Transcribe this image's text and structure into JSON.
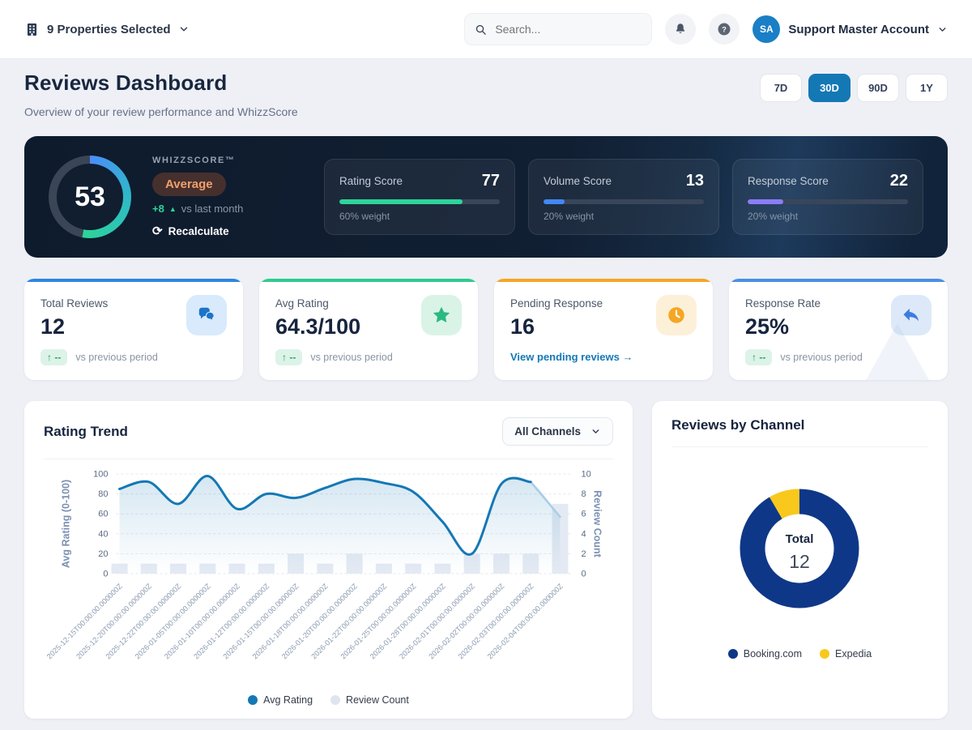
{
  "header": {
    "property_selector": "9 Properties Selected",
    "search_placeholder": "Search...",
    "avatar_initials": "SA",
    "account_name": "Support Master Account"
  },
  "page": {
    "title": "Reviews Dashboard",
    "subtitle": "Overview of your review performance and WhizzScore",
    "time_ranges": [
      {
        "label": "7D",
        "active": false
      },
      {
        "label": "30D",
        "active": true
      },
      {
        "label": "90D",
        "active": false
      },
      {
        "label": "1Y",
        "active": false
      }
    ],
    "accent_color": "#1478b5"
  },
  "whizzscore": {
    "score": 53,
    "label": "WHIZZSCORE™",
    "tier": "Average",
    "delta_value": "+8",
    "delta_arrow": "▲",
    "delta_text": "vs last month",
    "recalculate_icon": "⟳",
    "recalculate_label": "Recalculate",
    "gauge_colors": {
      "start": "#4b8ef8",
      "mid": "#2fb7c9",
      "end": "#2dd498",
      "track": "#3a4556"
    },
    "components": [
      {
        "name": "Rating Score",
        "value": 77,
        "weight": "60% weight",
        "color": "#2dd49a"
      },
      {
        "name": "Volume Score",
        "value": 13,
        "weight": "20% weight",
        "color": "#4287f5"
      },
      {
        "name": "Response Score",
        "value": 22,
        "weight": "20% weight",
        "color": "#8b7cf8"
      }
    ]
  },
  "stats": [
    {
      "label": "Total Reviews",
      "value": "12",
      "icon": "chat-bubbles-icon",
      "accent": "#2e86de",
      "badge": "↑ --",
      "suffix": "vs previous period"
    },
    {
      "label": "Avg Rating",
      "value": "64.3/100",
      "icon": "star-icon",
      "accent": "#2ecc8f",
      "badge": "↑ --",
      "suffix": "vs previous period"
    },
    {
      "label": "Pending Response",
      "value": "16",
      "icon": "clock-icon",
      "accent": "#f5a623",
      "link": "View pending reviews →"
    },
    {
      "label": "Response Rate",
      "value": "25%",
      "icon": "reply-icon",
      "accent": "#4a90e2",
      "badge": "↑ --",
      "suffix": "vs previous period"
    }
  ],
  "rating_trend": {
    "title": "Rating Trend",
    "channel_filter": "All Channels"
  },
  "reviews_by_channel": {
    "title": "Reviews by Channel"
  },
  "chart_data": [
    {
      "type": "line",
      "title": "Rating Trend",
      "x": [
        "2025-12-15T00:00:00.000000Z",
        "2025-12-20T00:00:00.000000Z",
        "2025-12-22T00:00:00.000000Z",
        "2026-01-05T00:00:00.000000Z",
        "2026-01-10T00:00:00.000000Z",
        "2026-01-12T00:00:00.000000Z",
        "2026-01-15T00:00:00.000000Z",
        "2026-01-18T00:00:00.000000Z",
        "2026-01-20T00:00:00.000000Z",
        "2026-01-22T00:00:00.000000Z",
        "2026-01-25T00:00:00.000000Z",
        "2026-01-28T00:00:00.000000Z",
        "2026-02-01T00:00:00.000000Z",
        "2026-02-02T00:00:00.000000Z",
        "2026-02-03T00:00:00.000000Z",
        "2026-02-04T00:00:00.000000Z"
      ],
      "series": [
        {
          "name": "Avg Rating",
          "type": "line",
          "axis": "left",
          "color": "#1478b5",
          "values": [
            85,
            92,
            70,
            98,
            65,
            80,
            76,
            86,
            95,
            91,
            82,
            52,
            20,
            90,
            92,
            57
          ]
        },
        {
          "name": "Review Count",
          "type": "bar",
          "axis": "right",
          "color": "#e4eaf3",
          "values": [
            1,
            1,
            1,
            1,
            1,
            1,
            2,
            1,
            2,
            1,
            1,
            1,
            2,
            2,
            2,
            7
          ]
        }
      ],
      "ylabel_left": "Avg Rating (0-100)",
      "ylabel_right": "Review Count",
      "ylim_left": [
        0,
        100
      ],
      "ylim_right": [
        0,
        10
      ],
      "grid": true,
      "legend_position": "bottom",
      "note": "last segment rendered faded (incomplete period)"
    },
    {
      "type": "pie",
      "title": "Reviews by Channel",
      "labels": [
        "Booking.com",
        "Expedia"
      ],
      "values": [
        11,
        1
      ],
      "colors": [
        "#0f3788",
        "#f8c81c"
      ],
      "center_label": "Total",
      "center_value": "12",
      "legend_position": "bottom"
    }
  ]
}
